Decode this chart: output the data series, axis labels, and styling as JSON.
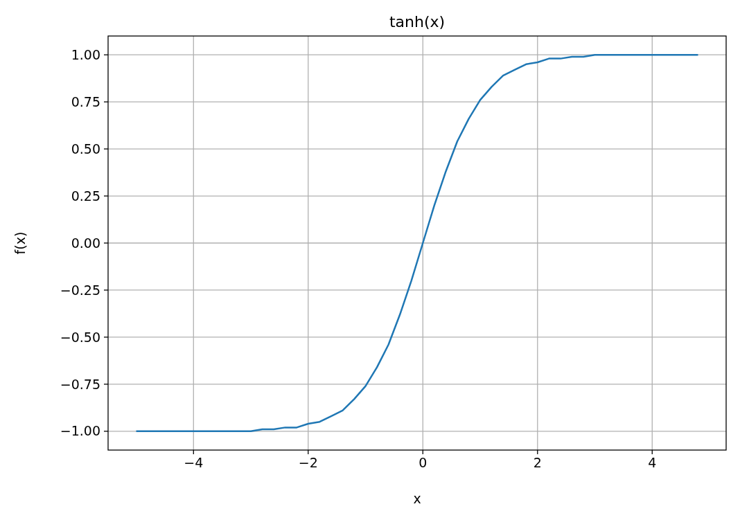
{
  "chart_data": {
    "type": "line",
    "title": "tanh(x)",
    "xlabel": "x",
    "ylabel": "f(x)",
    "x": [
      -5,
      -4.8,
      -4.6,
      -4.4,
      -4.2,
      -4,
      -3.8,
      -3.6,
      -3.4,
      -3.2,
      -3,
      -2.8,
      -2.6,
      -2.4,
      -2.2,
      -2,
      -1.8,
      -1.6,
      -1.4,
      -1.2,
      -1,
      -0.8,
      -0.6,
      -0.4,
      -0.2,
      0,
      0.2,
      0.4,
      0.6,
      0.8,
      1,
      1.2,
      1.4,
      1.6,
      1.8,
      2,
      2.2,
      2.4,
      2.6,
      2.8,
      3,
      3.2,
      3.4,
      3.6,
      3.8,
      4,
      4.2,
      4.4,
      4.6,
      4.8
    ],
    "series": [
      {
        "color": "#1f77b4",
        "values": [
          -1,
          -1,
          -1,
          -1,
          -1,
          -1,
          -1,
          -1,
          -1,
          -1,
          -1,
          -0.99,
          -0.99,
          -0.98,
          -0.98,
          -0.96,
          -0.95,
          -0.92,
          -0.89,
          -0.83,
          -0.76,
          -0.66,
          -0.54,
          -0.38,
          -0.2,
          0,
          0.2,
          0.38,
          0.54,
          0.66,
          0.76,
          0.83,
          0.89,
          0.92,
          0.95,
          0.96,
          0.98,
          0.98,
          0.99,
          0.99,
          1,
          1,
          1,
          1,
          1,
          1,
          1,
          1,
          1,
          1
        ]
      }
    ],
    "xlim": [
      -5.49,
      5.29
    ],
    "xticks": [
      {
        "value": -4,
        "label": "−4"
      },
      {
        "value": -2,
        "label": "−2"
      },
      0,
      2,
      4
    ],
    "ylim": [
      -1.1,
      1.1
    ],
    "yticks": [
      {
        "value": -1,
        "label": "−1.00"
      },
      {
        "value": -0.75,
        "label": "−0.75"
      },
      {
        "value": -0.5,
        "label": "−0.50"
      },
      {
        "value": -0.25,
        "label": "−0.25"
      },
      {
        "value": 0,
        "label": "0.00"
      },
      {
        "value": 0.25,
        "label": "0.25"
      },
      {
        "value": 0.5,
        "label": "0.50"
      },
      {
        "value": 0.75,
        "label": "0.75"
      },
      {
        "value": 1,
        "label": "1.00"
      }
    ],
    "grid": true,
    "marker": "none",
    "line_style": "solid"
  }
}
